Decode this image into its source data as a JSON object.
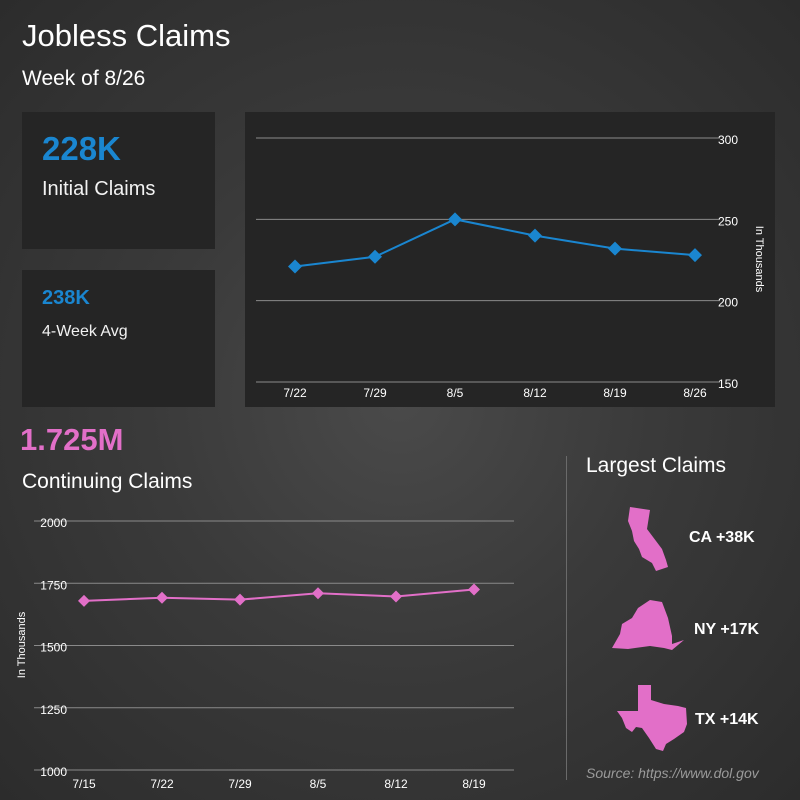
{
  "header": {
    "title": "Jobless Claims",
    "subtitle": "Week of 8/26"
  },
  "initial_card": {
    "value": "228K",
    "label": "Initial Claims"
  },
  "avg_card": {
    "value": "238K",
    "label": "4-Week Avg"
  },
  "continuing": {
    "value": "1.725M",
    "label": "Continuing Claims"
  },
  "largest": {
    "title": "Largest Claims",
    "items": [
      {
        "state": "CA",
        "label": "CA +38K",
        "icon": "california-icon"
      },
      {
        "state": "NY",
        "label": "NY +17K",
        "icon": "new-york-icon"
      },
      {
        "state": "TX",
        "label": "TX +14K",
        "icon": "texas-icon"
      }
    ]
  },
  "source": "Source: https://www.dol.gov",
  "colors": {
    "blue": "#1a86d0",
    "pink": "#e26fc8"
  },
  "chart_data": [
    {
      "type": "line",
      "name": "initial-claims",
      "categories": [
        "7/22",
        "7/29",
        "8/5",
        "8/12",
        "8/19",
        "8/26"
      ],
      "values": [
        221,
        227,
        250,
        240,
        232,
        228
      ],
      "ylabel": "In Thousands",
      "yticks": [
        "300",
        "250",
        "200",
        "150"
      ],
      "ylim": [
        150,
        300
      ]
    },
    {
      "type": "line",
      "name": "continuing-claims",
      "categories": [
        "7/15",
        "7/22",
        "7/29",
        "8/5",
        "8/12",
        "8/19"
      ],
      "values": [
        1679,
        1692,
        1684,
        1710,
        1697,
        1725
      ],
      "ylabel": "In Thousands",
      "yticks": [
        "2000",
        "1750",
        "1500",
        "1250",
        "1000"
      ],
      "ylim": [
        1000,
        2000
      ]
    }
  ]
}
